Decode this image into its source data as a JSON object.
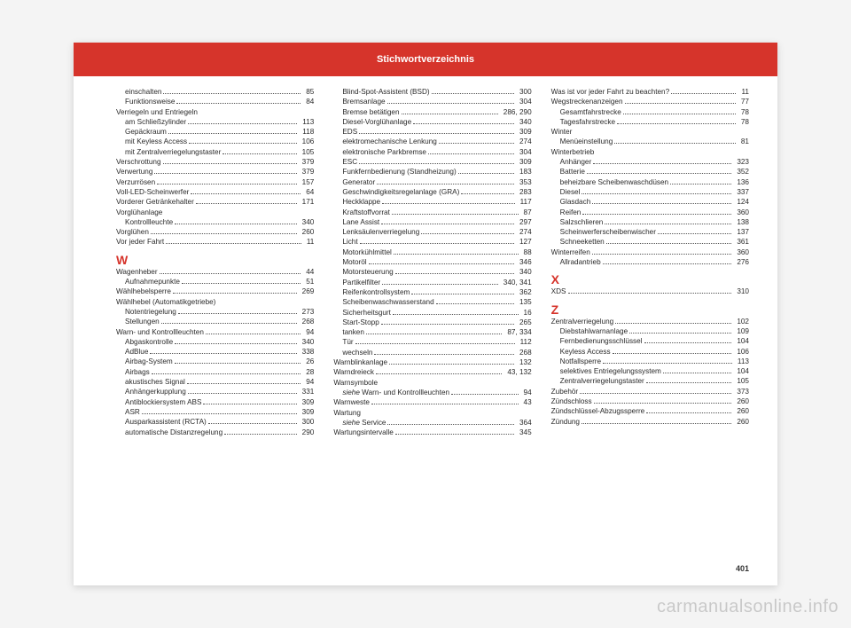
{
  "meta": {
    "header_title": "Stichwortverzeichnis",
    "header_bg": "#d6342b",
    "letter_color": "#d6342b",
    "text_color": "#2a2a2a",
    "page_number": "401",
    "watermark": "carmanualsonline.info"
  },
  "columns": [
    [
      {
        "t": "row",
        "indent": 1,
        "label": "einschalten",
        "page": "85"
      },
      {
        "t": "row",
        "indent": 1,
        "label": "Funktionsweise",
        "page": "84"
      },
      {
        "t": "head",
        "label": "Verriegeln und Entriegeln"
      },
      {
        "t": "row",
        "indent": 1,
        "label": "am Schließzylinder",
        "page": "113"
      },
      {
        "t": "row",
        "indent": 1,
        "label": "Gepäckraum",
        "page": "118"
      },
      {
        "t": "row",
        "indent": 1,
        "label": "mit Keyless Access",
        "page": "106"
      },
      {
        "t": "row",
        "indent": 1,
        "label": "mit Zentralverriegelungstaster",
        "page": "105"
      },
      {
        "t": "row",
        "label": "Verschrottung",
        "page": "379"
      },
      {
        "t": "row",
        "label": "Verwertung",
        "page": "379"
      },
      {
        "t": "row",
        "label": "Verzurrösen",
        "page": "157"
      },
      {
        "t": "row",
        "label": "Voll-LED-Scheinwerfer",
        "page": "64"
      },
      {
        "t": "row",
        "label": "Vorderer Getränkehalter",
        "page": "171"
      },
      {
        "t": "head",
        "label": "Vorglühanlage"
      },
      {
        "t": "row",
        "indent": 1,
        "label": "Kontrollleuchte",
        "page": "340"
      },
      {
        "t": "row",
        "label": "Vorglühen",
        "page": "260"
      },
      {
        "t": "row",
        "label": "Vor jeder Fahrt",
        "page": "11"
      },
      {
        "t": "letter",
        "label": "W"
      },
      {
        "t": "row",
        "label": "Wagenheber",
        "page": "44"
      },
      {
        "t": "row",
        "indent": 1,
        "label": "Aufnahmepunkte",
        "page": "51"
      },
      {
        "t": "row",
        "label": "Wählhebelsperre",
        "page": "269"
      },
      {
        "t": "head",
        "label": "Wählhebel (Automatikgetriebe)"
      },
      {
        "t": "row",
        "indent": 1,
        "label": "Notentriegelung",
        "page": "273"
      },
      {
        "t": "row",
        "indent": 1,
        "label": "Stellungen",
        "page": "268"
      },
      {
        "t": "row",
        "label": "Warn- und Kontrollleuchten",
        "page": "94"
      },
      {
        "t": "row",
        "indent": 1,
        "label": "Abgaskontrolle",
        "page": "340"
      },
      {
        "t": "row",
        "indent": 1,
        "label": "AdBlue",
        "page": "338"
      },
      {
        "t": "row",
        "indent": 1,
        "label": "Airbag-System",
        "page": "26"
      },
      {
        "t": "row",
        "indent": 1,
        "label": "Airbags",
        "page": "28"
      },
      {
        "t": "row",
        "indent": 1,
        "label": "akustisches Signal",
        "page": "94"
      },
      {
        "t": "row",
        "indent": 1,
        "label": "Anhängerkupplung",
        "page": "331"
      },
      {
        "t": "row",
        "indent": 1,
        "label": "Antiblockiersystem ABS",
        "page": "309"
      },
      {
        "t": "row",
        "indent": 1,
        "label": "ASR",
        "page": "309"
      },
      {
        "t": "row",
        "indent": 1,
        "label": "Ausparkassistent (RCTA)",
        "page": "300"
      },
      {
        "t": "row",
        "indent": 1,
        "label": "automatische Distanzregelung",
        "page": "290"
      }
    ],
    [
      {
        "t": "row",
        "indent": 1,
        "label": "Blind-Spot-Assistent (BSD)",
        "page": "300"
      },
      {
        "t": "row",
        "indent": 1,
        "label": "Bremsanlage",
        "page": "304"
      },
      {
        "t": "row",
        "indent": 1,
        "label": "Bremse betätigen",
        "page": "286, 290"
      },
      {
        "t": "row",
        "indent": 1,
        "label": "Diesel-Vorglühanlage",
        "page": "340"
      },
      {
        "t": "row",
        "indent": 1,
        "label": "EDS",
        "page": "309"
      },
      {
        "t": "row",
        "indent": 1,
        "label": "elektromechanische Lenkung",
        "page": "274"
      },
      {
        "t": "row",
        "indent": 1,
        "label": "elektronische Parkbremse",
        "page": "304"
      },
      {
        "t": "row",
        "indent": 1,
        "label": "ESC",
        "page": "309"
      },
      {
        "t": "row",
        "indent": 1,
        "label": "Funkfernbedienung (Standheizung)",
        "page": "183"
      },
      {
        "t": "row",
        "indent": 1,
        "label": "Generator",
        "page": "353"
      },
      {
        "t": "row",
        "indent": 1,
        "label": "Geschwindigkeitsregelanlage (GRA)",
        "page": "283"
      },
      {
        "t": "row",
        "indent": 1,
        "label": "Heckklappe",
        "page": "117"
      },
      {
        "t": "row",
        "indent": 1,
        "label": "Kraftstoffvorrat",
        "page": "87"
      },
      {
        "t": "row",
        "indent": 1,
        "label": "Lane Assist",
        "page": "297"
      },
      {
        "t": "row",
        "indent": 1,
        "label": "Lenksäulenverriegelung",
        "page": "274"
      },
      {
        "t": "row",
        "indent": 1,
        "label": "Licht",
        "page": "127"
      },
      {
        "t": "row",
        "indent": 1,
        "label": "Motorkühlmittel",
        "page": "88"
      },
      {
        "t": "row",
        "indent": 1,
        "label": "Motoröl",
        "page": "346"
      },
      {
        "t": "row",
        "indent": 1,
        "label": "Motorsteuerung",
        "page": "340"
      },
      {
        "t": "row",
        "indent": 1,
        "label": "Partikelfilter",
        "page": "340, 341"
      },
      {
        "t": "row",
        "indent": 1,
        "label": "Reifenkontrollsystem",
        "page": "362"
      },
      {
        "t": "row",
        "indent": 1,
        "label": "Scheibenwaschwasserstand",
        "page": "135"
      },
      {
        "t": "row",
        "indent": 1,
        "label": "Sicherheitsgurt",
        "page": "16"
      },
      {
        "t": "row",
        "indent": 1,
        "label": "Start-Stopp",
        "page": "265"
      },
      {
        "t": "row",
        "indent": 1,
        "label": "tanken",
        "page": "87, 334"
      },
      {
        "t": "row",
        "indent": 1,
        "label": "Tür",
        "page": "112"
      },
      {
        "t": "row",
        "indent": 1,
        "label": "wechseln",
        "page": "268"
      },
      {
        "t": "row",
        "label": "Warnblinkanlage",
        "page": "132"
      },
      {
        "t": "row",
        "label": "Warndreieck",
        "page": "43, 132"
      },
      {
        "t": "head",
        "label": "Warnsymbole"
      },
      {
        "t": "row",
        "indent": 1,
        "label": "siehe Warn- und Kontrollleuchten",
        "page": "94",
        "italic": true
      },
      {
        "t": "row",
        "label": "Warnweste",
        "page": "43"
      },
      {
        "t": "head",
        "label": "Wartung"
      },
      {
        "t": "row",
        "indent": 1,
        "label": "siehe Service",
        "page": "364",
        "italic": true
      },
      {
        "t": "row",
        "label": "Wartungsintervalle",
        "page": "345"
      }
    ],
    [
      {
        "t": "row",
        "label": "Was ist vor jeder Fahrt zu beachten?",
        "page": "11"
      },
      {
        "t": "row",
        "label": "Wegstreckenanzeigen",
        "page": "77"
      },
      {
        "t": "row",
        "indent": 1,
        "label": "Gesamtfahrstrecke",
        "page": "78"
      },
      {
        "t": "row",
        "indent": 1,
        "label": "Tagesfahrstrecke",
        "page": "78"
      },
      {
        "t": "head",
        "label": "Winter"
      },
      {
        "t": "row",
        "indent": 1,
        "label": "Menüeinstellung",
        "page": "81"
      },
      {
        "t": "head",
        "label": "Winterbetrieb"
      },
      {
        "t": "row",
        "indent": 1,
        "label": "Anhänger",
        "page": "323"
      },
      {
        "t": "row",
        "indent": 1,
        "label": "Batterie",
        "page": "352"
      },
      {
        "t": "row",
        "indent": 1,
        "label": "beheizbare Scheibenwaschdüsen",
        "page": "136"
      },
      {
        "t": "row",
        "indent": 1,
        "label": "Diesel",
        "page": "337"
      },
      {
        "t": "row",
        "indent": 1,
        "label": "Glasdach",
        "page": "124"
      },
      {
        "t": "row",
        "indent": 1,
        "label": "Reifen",
        "page": "360"
      },
      {
        "t": "row",
        "indent": 1,
        "label": "Salzschlieren",
        "page": "138"
      },
      {
        "t": "row",
        "indent": 1,
        "label": "Scheinwerferscheibenwischer",
        "page": "137"
      },
      {
        "t": "row",
        "indent": 1,
        "label": "Schneeketten",
        "page": "361"
      },
      {
        "t": "row",
        "label": "Winterreifen",
        "page": "360"
      },
      {
        "t": "row",
        "indent": 1,
        "label": "Allradantrieb",
        "page": "276"
      },
      {
        "t": "letter",
        "label": "X"
      },
      {
        "t": "row",
        "label": "XDS",
        "page": "310"
      },
      {
        "t": "letter",
        "label": "Z"
      },
      {
        "t": "row",
        "label": "Zentralverriegelung",
        "page": "102"
      },
      {
        "t": "row",
        "indent": 1,
        "label": "Diebstahlwarnanlage",
        "page": "109"
      },
      {
        "t": "row",
        "indent": 1,
        "label": "Fernbedienungsschlüssel",
        "page": "104"
      },
      {
        "t": "row",
        "indent": 1,
        "label": "Keyless Access",
        "page": "106"
      },
      {
        "t": "row",
        "indent": 1,
        "label": "Notfallsperre",
        "page": "113"
      },
      {
        "t": "row",
        "indent": 1,
        "label": "selektives Entriegelungssystem",
        "page": "104"
      },
      {
        "t": "row",
        "indent": 1,
        "label": "Zentralverriegelungstaster",
        "page": "105"
      },
      {
        "t": "row",
        "label": "Zubehör",
        "page": "373"
      },
      {
        "t": "row",
        "label": "Zündschloss",
        "page": "260"
      },
      {
        "t": "row",
        "label": "Zündschlüssel-Abzugssperre",
        "page": "260"
      },
      {
        "t": "row",
        "label": "Zündung",
        "page": "260"
      }
    ]
  ]
}
